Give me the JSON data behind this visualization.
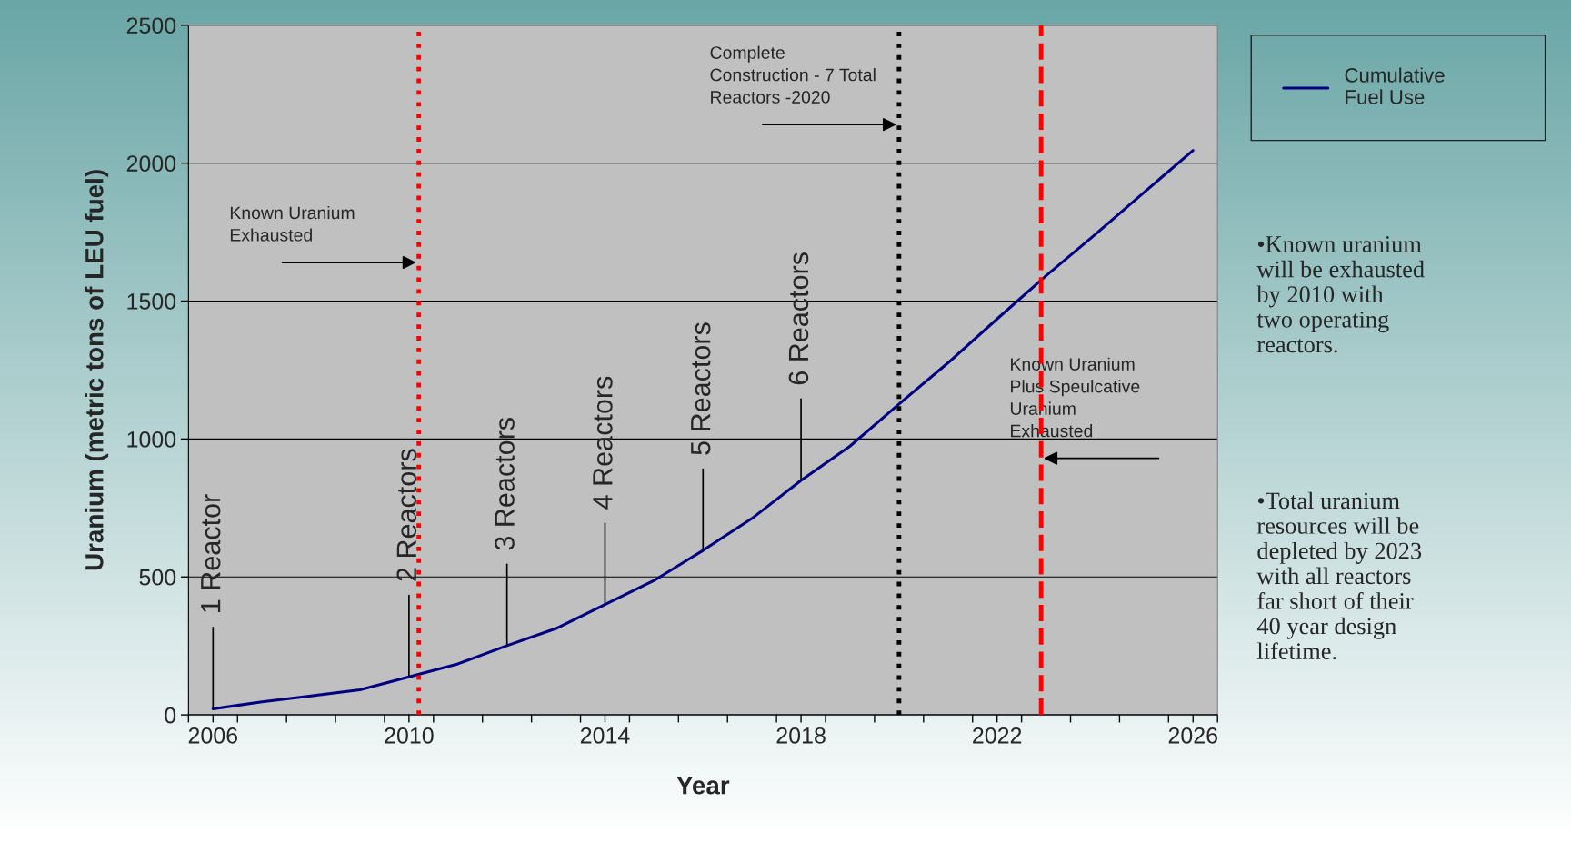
{
  "chart_data": {
    "type": "line",
    "xlabel": "Year",
    "ylabel": "Uranium (metric tons of LEU fuel)",
    "x": [
      2006,
      2007,
      2008,
      2009,
      2010,
      2011,
      2012,
      2013,
      2014,
      2015,
      2016,
      2017,
      2018,
      2019,
      2020,
      2021,
      2022,
      2023,
      2024,
      2025,
      2026
    ],
    "series": [
      {
        "name": "Cumulative\nFuel Use",
        "color": "#000080",
        "values": [
          22,
          47,
          69,
          91,
          138,
          185,
          251,
          313,
          400,
          487,
          596,
          712,
          850,
          974,
          1127,
          1276,
          1435,
          1592,
          1741,
          1894,
          2046
        ]
      }
    ],
    "xlim": [
      2005.5,
      2026.5
    ],
    "xticks": [
      {
        "value": 2005.5,
        "label": null
      },
      2006,
      {
        "value": 2006.5,
        "label": null
      },
      {
        "value": 2007.5,
        "label": null
      },
      {
        "value": 2008.5,
        "label": null
      },
      {
        "value": 2009.5,
        "label": null
      },
      2010,
      {
        "value": 2010.5,
        "label": null
      },
      {
        "value": 2011.5,
        "label": null
      },
      {
        "value": 2012.5,
        "label": null
      },
      {
        "value": 2013.5,
        "label": null
      },
      2014,
      {
        "value": 2014.5,
        "label": null
      },
      {
        "value": 2015.5,
        "label": null
      },
      {
        "value": 2016.5,
        "label": null
      },
      {
        "value": 2017.5,
        "label": null
      },
      2018,
      {
        "value": 2018.5,
        "label": null
      },
      {
        "value": 2019.5,
        "label": null
      },
      {
        "value": 2020.5,
        "label": null
      },
      {
        "value": 2021.5,
        "label": null
      },
      2022,
      {
        "value": 2022.5,
        "label": null
      },
      {
        "value": 2023.5,
        "label": null
      },
      {
        "value": 2024.5,
        "label": null
      },
      {
        "value": 2025.5,
        "label": null
      },
      2026,
      {
        "value": 2026.5,
        "label": null
      }
    ],
    "ylim": [
      0,
      2500
    ],
    "yticks": [
      0,
      500,
      1000,
      1500,
      2000,
      2500
    ],
    "grid": "y",
    "legend": "top right",
    "marker": "none",
    "line_style": "solid",
    "ref_lines": [
      {
        "axis": "x",
        "value": 2010.2,
        "color": "#ff0000",
        "line_style": "dotted"
      },
      {
        "axis": "x",
        "value": 2020,
        "color": "#000000",
        "line_style": "dotted"
      },
      {
        "axis": "x",
        "value": 2022.9,
        "color": "#ff0000",
        "line_style": "dashed"
      }
    ],
    "annotations": [
      {
        "text": "1 Reactor",
        "x": 2006,
        "y": 22
      },
      {
        "text": "2 Reactors",
        "x": 2010,
        "y": 138
      },
      {
        "text": "3 Reactors",
        "x": 2012,
        "y": 251
      },
      {
        "text": "4 Reactors",
        "x": 2014,
        "y": 400
      },
      {
        "text": "5 Reactors",
        "x": 2016,
        "y": 596
      },
      {
        "text": "6 Reactors",
        "x": 2018,
        "y": 850
      },
      {
        "text": "Known Uranium\nExhausted",
        "x": 2010.2,
        "y": 1640
      },
      {
        "text": "Complete\nConstruction - 7 Total\nReactors -2020",
        "x": 2020,
        "y": 2140
      },
      {
        "text": "Known Uranium\nPlus Speulcative\nUranium\nExhausted",
        "x": 2022.9,
        "y": 930
      },
      "•Known uranium\nwill be exhausted\nby 2010 with\ntwo operating\nreactors.",
      "•Total uranium\nresources will be\ndepleted by 2023\nwith all reactors\nfar short of their\n40 year design\nlifetime."
    ]
  }
}
